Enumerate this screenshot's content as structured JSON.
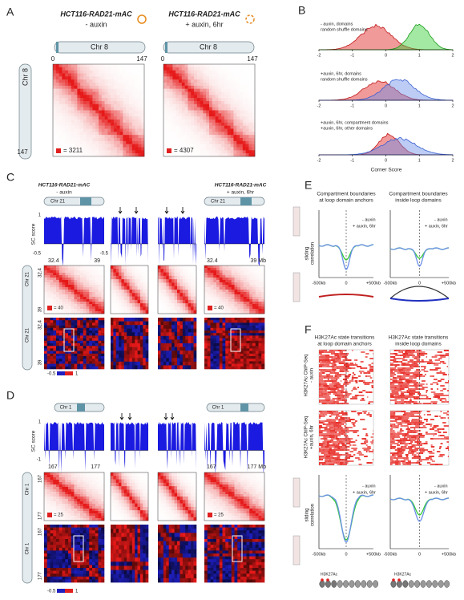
{
  "panel_a": {
    "label": "A",
    "left_title": "HCT116-RAD21-mAC",
    "left_condition": "- auxin",
    "right_title": "HCT116-RAD21-mAC",
    "right_condition": "+ auxin, 6hr",
    "left_chrom": "Chr 8",
    "right_chrom": "Chr 8",
    "left_start": 0,
    "left_end": 147,
    "right_start": 0,
    "right_end": 147,
    "side_chrom": "Chr 8",
    "side_end": 147,
    "left_scale": "= 3211",
    "right_scale": "= 4307"
  },
  "panel_b": {
    "label": "B",
    "plot1_legend": [
      "- auxin, domains",
      "random shuffle domains"
    ],
    "plot2_legend": [
      "+auxin, 6hr, domains",
      "random shuffle domains"
    ],
    "plot3_legend": [
      "+auxin, 6hr, compartment domains",
      "+auxin, 6hr, other domains"
    ],
    "x_ticks": [
      -2,
      -1,
      0,
      1,
      2
    ],
    "x_label": "Corner Score"
  },
  "panel_c": {
    "label": "C",
    "left_title": "HCT116-RAD21-mAC",
    "left_condition": "- auxin",
    "right_title": "HCT116-RAD21-mAC",
    "right_condition": "+ auxin, 6hr",
    "left_chrom": "Chr 21",
    "right_chrom": "Chr 21",
    "track_label": "SC score",
    "track_top": 1,
    "track_bottom": -0.5,
    "mid_track_bottom": -0.5,
    "left_start": 32.4,
    "left_end": 39,
    "right_start": 32.4,
    "right_end": "39 Mb",
    "side_start": 32.4,
    "side_end": 39,
    "side_chrom": "Chr 21",
    "comp_chrom": "Chr 21",
    "comp_start": 32.4,
    "comp_end": 39,
    "left_scale": "= 40",
    "right_scale": "= 40",
    "colorbar_min": -0.5,
    "colorbar_max": 1
  },
  "panel_d": {
    "label": "D",
    "left_chrom": "Chr 1",
    "right_chrom": "Chr 1",
    "track_label": "SC score",
    "track_top": 1,
    "track_bottom": -1,
    "left_start": 167,
    "left_end": 177,
    "right_start": 167,
    "right_end": "177 Mb",
    "side_start": 167,
    "side_end": 177,
    "side_chrom": "Chr 1",
    "comp_chrom": "Chr 1",
    "comp_start": 167,
    "comp_end": 177,
    "left_scale": "= 25",
    "right_scale": "= 25",
    "colorbar_min": -0.5,
    "colorbar_max": 1
  },
  "panel_e": {
    "label": "E",
    "left_title": [
      "Compartment boundaries",
      "at loop domain anchors"
    ],
    "right_title": [
      "Compartment boundaries",
      "inside loop domains"
    ],
    "legend": [
      "- auxin",
      "+ auxin, 6hr"
    ],
    "y_label": [
      "sliding",
      "correlation"
    ],
    "x_ticks": [
      "-500kb",
      "0",
      "+500kb"
    ]
  },
  "panel_f": {
    "label": "F",
    "left_title": [
      "H3K27Ac state transitions",
      "at loop domain anchors"
    ],
    "right_title": [
      "H3K27Ac state transitions",
      "inside loop domains"
    ],
    "row1_label": [
      "H3K27Ac ChIP-Seq",
      "- auxin"
    ],
    "row2_label": [
      "H3K27Ac ChIP-Seq",
      "+auxin, 6hr"
    ],
    "legend": [
      "- auxin",
      "+ auxin, 6hr"
    ],
    "y_label": [
      "sliding",
      "correlation"
    ],
    "x_ticks": [
      "-500kb",
      "0",
      "+500kb"
    ],
    "mark_label": "H3K27Ac"
  }
}
